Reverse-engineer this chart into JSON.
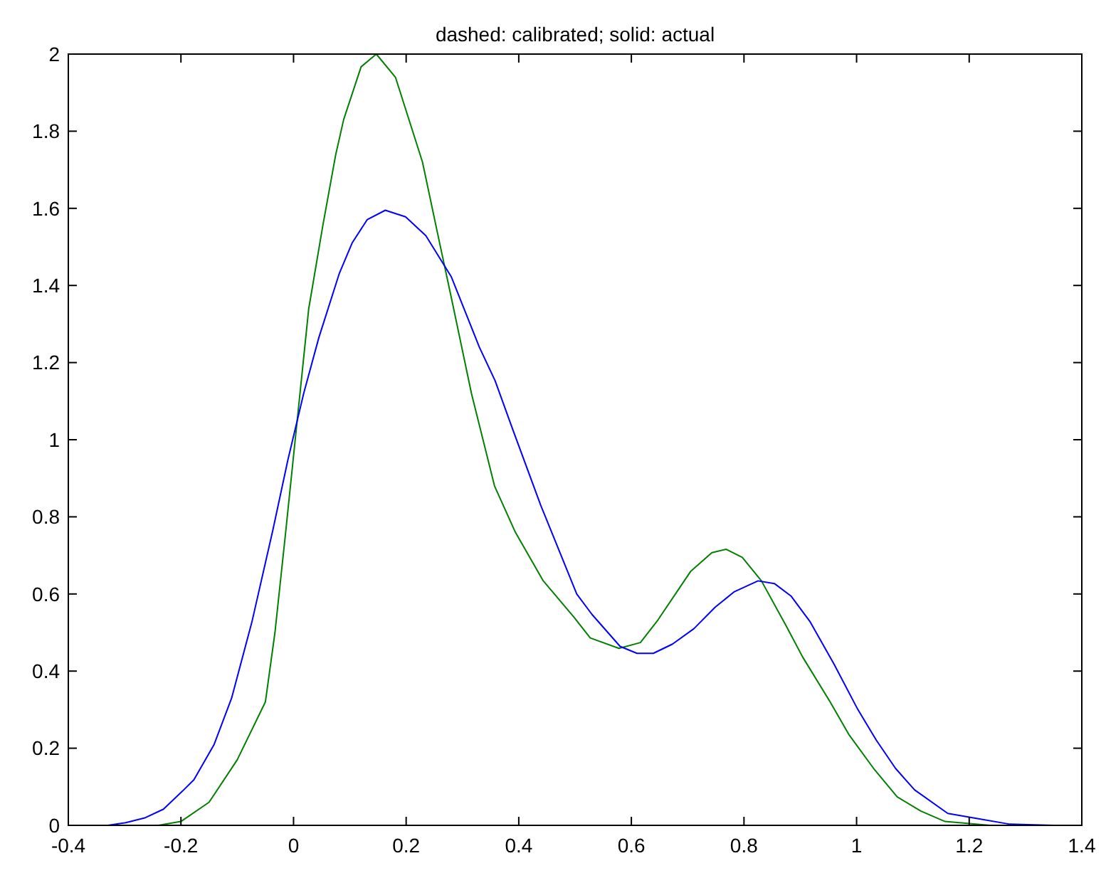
{
  "chart_data": {
    "type": "line",
    "title": "dashed: calibrated; solid: actual",
    "xlim": [
      -0.4,
      1.4
    ],
    "ylim": [
      0,
      2
    ],
    "xticks": [
      {
        "value": -0.4,
        "label": "-0.4"
      },
      {
        "value": -0.2,
        "label": "-0.2"
      },
      0,
      0.2,
      0.4,
      0.6,
      0.8,
      1,
      1.2,
      1.4
    ],
    "yticks": [
      0,
      0.2,
      0.4,
      0.6,
      0.8,
      1,
      1.2,
      1.4,
      1.6,
      1.8,
      2
    ],
    "grid": false,
    "line_style": "solid",
    "marker": "none",
    "series": [
      {
        "color": "#008000",
        "x": [
          -0.24,
          -0.2,
          -0.15,
          -0.1,
          -0.05,
          -0.033,
          -0.014,
          0.027,
          0.052,
          0.075,
          0.089,
          0.12,
          0.147,
          0.181,
          0.229,
          0.258,
          0.28,
          0.316,
          0.357,
          0.394,
          0.443,
          0.498,
          0.527,
          0.578,
          0.616,
          0.646,
          0.705,
          0.743,
          0.768,
          0.797,
          0.831,
          0.875,
          0.904,
          0.953,
          0.987,
          1.03,
          1.072,
          1.114,
          1.157,
          1.237
        ],
        "values": [
          0,
          0.01,
          0.06,
          0.17,
          0.32,
          0.5,
          0.76,
          1.34,
          1.555,
          1.74,
          1.83,
          1.967,
          2,
          1.94,
          1.72,
          1.52,
          1.37,
          1.12,
          0.88,
          0.76,
          0.635,
          0.54,
          0.486,
          0.459,
          0.474,
          0.53,
          0.658,
          0.707,
          0.716,
          0.695,
          0.634,
          0.517,
          0.437,
          0.32,
          0.234,
          0.148,
          0.074,
          0.037,
          0.01,
          0
        ]
      },
      {
        "color": "#0000ff",
        "x": [
          -0.33,
          -0.298,
          -0.263,
          -0.231,
          -0.195,
          -0.177,
          -0.141,
          -0.11,
          -0.074,
          -0.037,
          -0.01,
          0.018,
          0.045,
          0.081,
          0.104,
          0.131,
          0.163,
          0.199,
          0.235,
          0.28,
          0.33,
          0.358,
          0.389,
          0.439,
          0.503,
          0.53,
          0.58,
          0.61,
          0.639,
          0.673,
          0.711,
          0.749,
          0.783,
          0.825,
          0.854,
          0.884,
          0.917,
          0.96,
          1.002,
          1.035,
          1.069,
          1.103,
          1.162,
          1.213,
          1.272,
          1.35
        ],
        "values": [
          0,
          0.007,
          0.02,
          0.042,
          0.092,
          0.118,
          0.21,
          0.33,
          0.527,
          0.764,
          0.948,
          1.12,
          1.265,
          1.43,
          1.51,
          1.571,
          1.595,
          1.578,
          1.529,
          1.423,
          1.24,
          1.153,
          1.028,
          0.83,
          0.6,
          0.547,
          0.464,
          0.446,
          0.446,
          0.47,
          0.51,
          0.566,
          0.606,
          0.634,
          0.627,
          0.594,
          0.529,
          0.418,
          0.301,
          0.221,
          0.148,
          0.092,
          0.031,
          0.018,
          0.003,
          0
        ]
      }
    ]
  }
}
